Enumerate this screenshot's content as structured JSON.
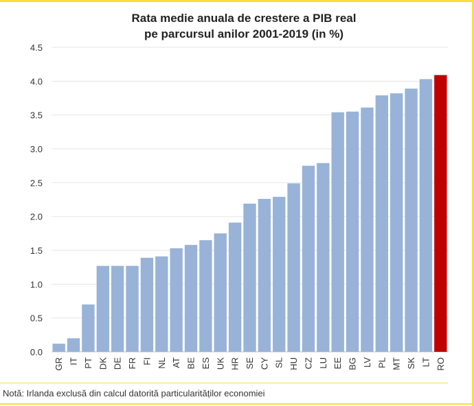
{
  "chart_data": {
    "type": "bar",
    "title_line1": "Rata medie anuala de crestere  a PIB real",
    "title_line2": "pe parcursul anilor 2001-2019 (in %)",
    "categories": [
      "GR",
      "IT",
      "PT",
      "DK",
      "DE",
      "FR",
      "FI",
      "NL",
      "AT",
      "BE",
      "ES",
      "UK",
      "HR",
      "SE",
      "CY",
      "SL",
      "HU",
      "CZ",
      "LU",
      "EE",
      "BG",
      "LV",
      "PL",
      "MT",
      "SK",
      "LT",
      "RO"
    ],
    "values": [
      0.12,
      0.2,
      0.7,
      1.27,
      1.27,
      1.27,
      1.39,
      1.41,
      1.53,
      1.58,
      1.65,
      1.75,
      1.91,
      2.19,
      2.26,
      2.29,
      2.49,
      2.75,
      2.79,
      3.54,
      3.55,
      3.61,
      3.79,
      3.82,
      3.89,
      4.03,
      4.09
    ],
    "highlight": "RO",
    "ylim": [
      0,
      4.5
    ],
    "yticks": [
      "0.0",
      "0.5",
      "1.0",
      "1.5",
      "2.0",
      "2.5",
      "3.0",
      "3.5",
      "4.0",
      "4.5"
    ],
    "colors": {
      "bar": "#98b3d7",
      "highlight": "#c00000",
      "grid": "#e6e6e6"
    },
    "grid": true,
    "xlabel": "",
    "ylabel": ""
  },
  "note": "Notă: Irlanda exclusă din calcul datorită particularităților economiei"
}
